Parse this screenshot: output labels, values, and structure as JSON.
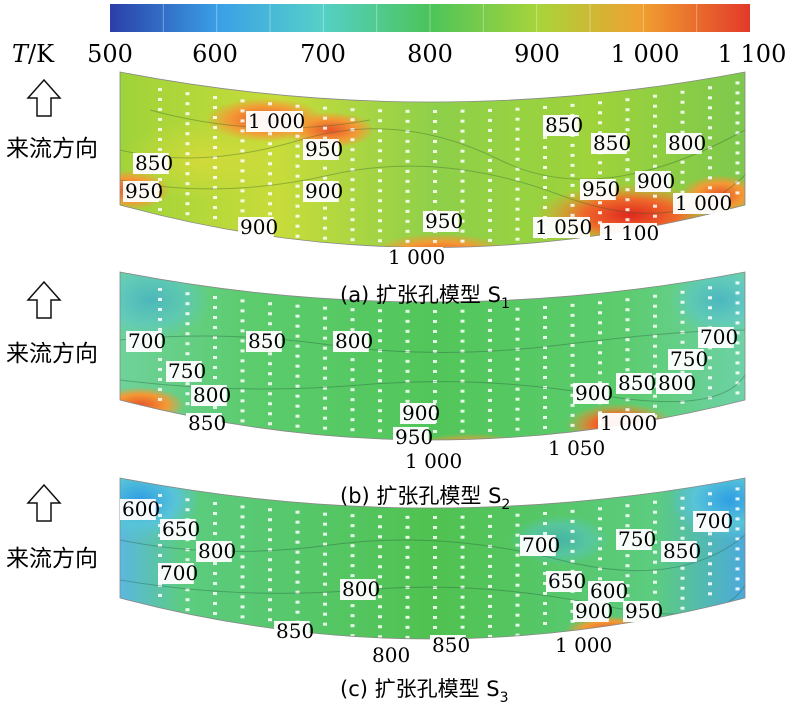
{
  "colorbar": {
    "unit_label_italic": "T",
    "unit_label_rest": "/K",
    "ticks": [
      "500",
      "600",
      "700",
      "800",
      "900",
      "1 000",
      "1 100"
    ],
    "stops": [
      "#2b3fa8",
      "#3aa0e6",
      "#55d0c8",
      "#4cc45a",
      "#a8d43a",
      "#f0a030",
      "#e23a2a"
    ]
  },
  "flow_label": "来流方向",
  "panels": [
    {
      "caption_main": "(a) 扩张孔模型 S",
      "caption_sub": "1",
      "labels": [
        "1 000",
        "950",
        "850",
        "950",
        "900",
        "900",
        "950",
        "1 000",
        "850",
        "850",
        "800",
        "950",
        "900",
        "1 000",
        "1 050",
        "1 100"
      ]
    },
    {
      "caption_main": "(b) 扩张孔模型 S",
      "caption_sub": "2",
      "labels": [
        "700",
        "850",
        "800",
        "750",
        "800",
        "850",
        "900",
        "950",
        "1 000",
        "700",
        "750",
        "900",
        "850",
        "800",
        "1 000",
        "1 050"
      ]
    },
    {
      "caption_main": "(c) 扩张孔模型 S",
      "caption_sub": "3",
      "labels": [
        "600",
        "650",
        "800",
        "700",
        "800",
        "850",
        "800",
        "850",
        "700",
        "750",
        "850",
        "700",
        "650",
        "600",
        "900",
        "950",
        "1 000"
      ]
    }
  ]
}
